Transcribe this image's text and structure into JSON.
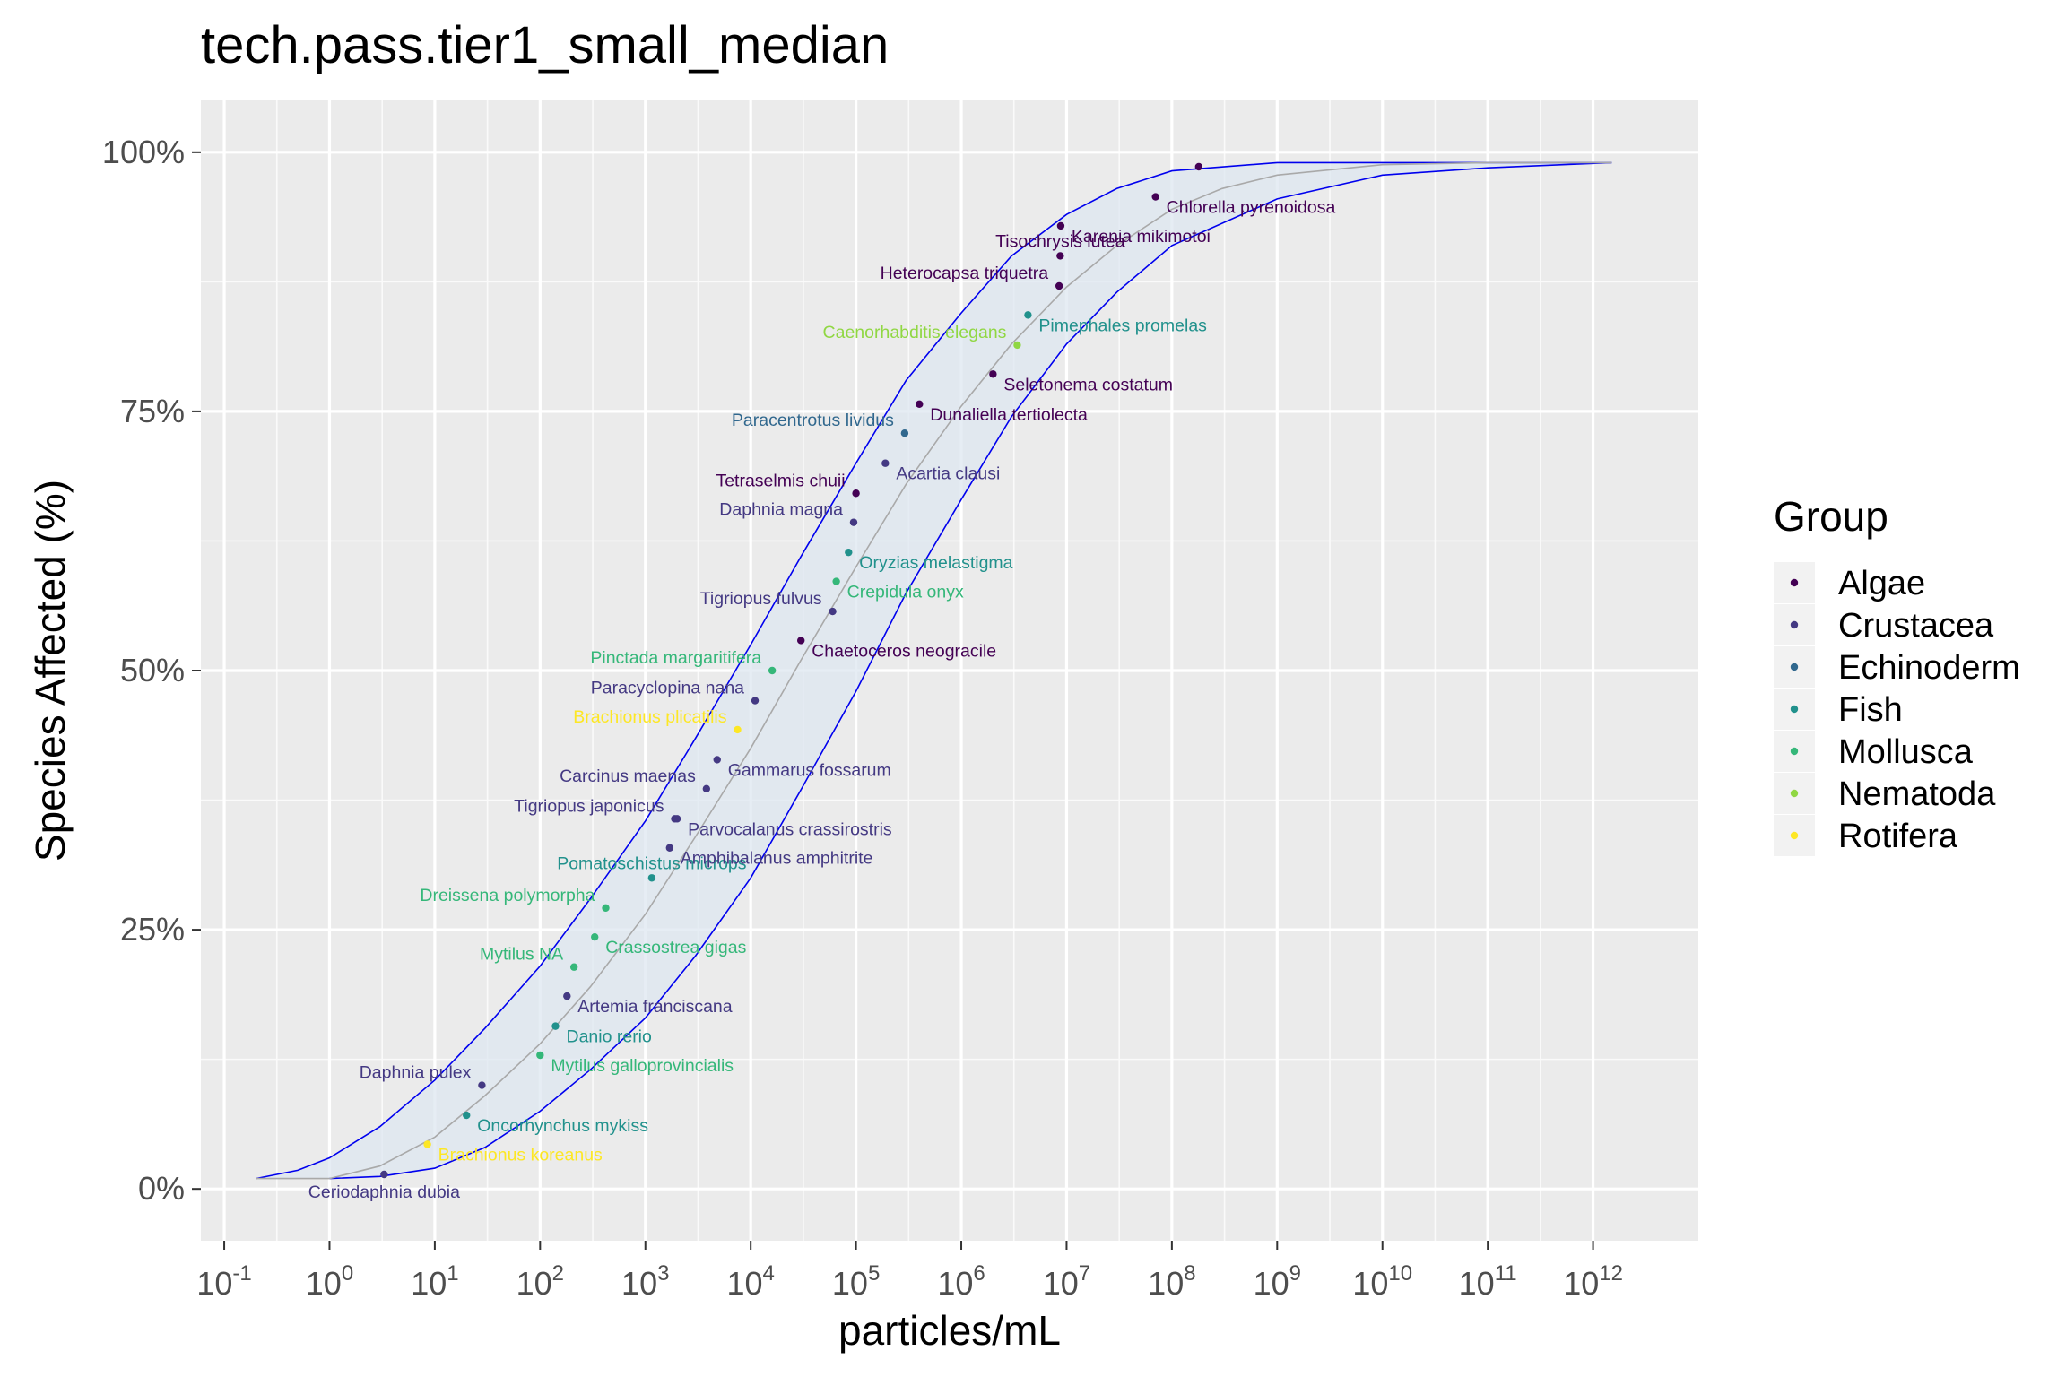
{
  "chart_data": {
    "type": "scatter",
    "title": "tech.pass.tier1_small_median",
    "xlabel": "particles/mL",
    "ylabel": "Species Affected (%)",
    "x_scale": "log10",
    "xlim": [
      0.06,
      10000000000000.0
    ],
    "ylim": [
      -5,
      105
    ],
    "x_ticks": [
      {
        "value": 0.1,
        "base": "10",
        "exp": "-1"
      },
      {
        "value": 1,
        "base": "10",
        "exp": "0"
      },
      {
        "value": 10,
        "base": "10",
        "exp": "1"
      },
      {
        "value": 100,
        "base": "10",
        "exp": "2"
      },
      {
        "value": 1000,
        "base": "10",
        "exp": "3"
      },
      {
        "value": 10000,
        "base": "10",
        "exp": "4"
      },
      {
        "value": 100000,
        "base": "10",
        "exp": "5"
      },
      {
        "value": 1000000,
        "base": "10",
        "exp": "6"
      },
      {
        "value": 10000000,
        "base": "10",
        "exp": "7"
      },
      {
        "value": 100000000,
        "base": "10",
        "exp": "8"
      },
      {
        "value": 1000000000,
        "base": "10",
        "exp": "9"
      },
      {
        "value": 10000000000,
        "base": "10",
        "exp": "10"
      },
      {
        "value": 100000000000,
        "base": "10",
        "exp": "11"
      },
      {
        "value": 1000000000000,
        "base": "10",
        "exp": "12"
      }
    ],
    "y_ticks": [
      {
        "value": 0,
        "label": "0%"
      },
      {
        "value": 25,
        "label": "25%"
      },
      {
        "value": 50,
        "label": "50%"
      },
      {
        "value": 75,
        "label": "75%"
      },
      {
        "value": 100,
        "label": "100%"
      }
    ],
    "grid": true,
    "legend": {
      "title": "Group",
      "position": "right"
    },
    "groups": [
      {
        "name": "Algae",
        "color": "#440154"
      },
      {
        "name": "Crustacea",
        "color": "#443983"
      },
      {
        "name": "Echinoderm",
        "color": "#31688E"
      },
      {
        "name": "Fish",
        "color": "#21918C"
      },
      {
        "name": "Mollusca",
        "color": "#35B779"
      },
      {
        "name": "Nematoda",
        "color": "#90D743"
      },
      {
        "name": "Rotifera",
        "color": "#FDE725"
      }
    ],
    "fit_line_color": "#a9a9a9",
    "band_color": "#0000ee",
    "band_fill": "#dde7f0",
    "fit_curve": [
      [
        0.2,
        1
      ],
      [
        1,
        1
      ],
      [
        3,
        2.2
      ],
      [
        10,
        5
      ],
      [
        30,
        9
      ],
      [
        100,
        14
      ],
      [
        300,
        19.5
      ],
      [
        1000,
        26.5
      ],
      [
        3000,
        34
      ],
      [
        10000,
        42.5
      ],
      [
        30000,
        51
      ],
      [
        100000,
        60
      ],
      [
        300000,
        68
      ],
      [
        1000000,
        75.5
      ],
      [
        3000000,
        81.5
      ],
      [
        10000000,
        87
      ],
      [
        30000000,
        91
      ],
      [
        100000000,
        94.5
      ],
      [
        300000000,
        96.5
      ],
      [
        1000000000,
        97.8
      ],
      [
        10000000000,
        98.8
      ],
      [
        100000000000,
        99
      ],
      [
        1500000000000,
        99
      ]
    ],
    "upper_band": [
      [
        0.2,
        1
      ],
      [
        0.5,
        1.8
      ],
      [
        1,
        3
      ],
      [
        3,
        6
      ],
      [
        10,
        10.5
      ],
      [
        30,
        15.5
      ],
      [
        100,
        21.5
      ],
      [
        300,
        28
      ],
      [
        1000,
        35.5
      ],
      [
        3000,
        43.5
      ],
      [
        10000,
        52.5
      ],
      [
        30000,
        61
      ],
      [
        100000,
        70
      ],
      [
        300000,
        78
      ],
      [
        1000000,
        84.5
      ],
      [
        3000000,
        90
      ],
      [
        10000000,
        94
      ],
      [
        30000000,
        96.5
      ],
      [
        100000000,
        98.2
      ],
      [
        1000000000,
        99
      ],
      [
        100000000000,
        99
      ],
      [
        1500000000000,
        99
      ]
    ],
    "lower_band": [
      [
        1,
        1
      ],
      [
        3,
        1.2
      ],
      [
        10,
        2
      ],
      [
        30,
        4
      ],
      [
        100,
        7.5
      ],
      [
        300,
        11.5
      ],
      [
        1000,
        16.5
      ],
      [
        3000,
        22.5
      ],
      [
        10000,
        30
      ],
      [
        30000,
        38.5
      ],
      [
        100000,
        48
      ],
      [
        300000,
        57.5
      ],
      [
        1000000,
        66.5
      ],
      [
        3000000,
        74.5
      ],
      [
        10000000,
        81.5
      ],
      [
        30000000,
        86.5
      ],
      [
        100000000,
        91
      ],
      [
        1000000000,
        95.5
      ],
      [
        10000000000,
        97.8
      ],
      [
        100000000000,
        98.5
      ],
      [
        1500000000000,
        99
      ]
    ],
    "points": [
      {
        "name": "Ceriodaphnia dubia",
        "group": "Crustacea",
        "x": 3.3,
        "y": 1.4,
        "label_side": "below"
      },
      {
        "name": "Brachionus koreanus",
        "group": "Rotifera",
        "x": 8.5,
        "y": 4.3,
        "label_side": "right"
      },
      {
        "name": "Oncorhynchus mykiss",
        "group": "Fish",
        "x": 20,
        "y": 7.1,
        "label_side": "right"
      },
      {
        "name": "Daphnia pulex",
        "group": "Crustacea",
        "x": 28,
        "y": 10,
        "label_side": "left"
      },
      {
        "name": "Mytilus galloprovincialis",
        "group": "Mollusca",
        "x": 100,
        "y": 12.9,
        "label_side": "right"
      },
      {
        "name": "Danio rerio",
        "group": "Fish",
        "x": 140,
        "y": 15.7,
        "label_side": "right"
      },
      {
        "name": "Artemia franciscana",
        "group": "Crustacea",
        "x": 180,
        "y": 18.6,
        "label_side": "right"
      },
      {
        "name": "Mytilus NA",
        "group": "Mollusca",
        "x": 210,
        "y": 21.4,
        "label_side": "left"
      },
      {
        "name": "Crassostrea gigas",
        "group": "Mollusca",
        "x": 330,
        "y": 24.3,
        "label_side": "right"
      },
      {
        "name": "Dreissena polymorpha",
        "group": "Mollusca",
        "x": 420,
        "y": 27.1,
        "label_side": "left"
      },
      {
        "name": "Pomatoschistus microps",
        "group": "Fish",
        "x": 1150,
        "y": 30,
        "label_side": "above"
      },
      {
        "name": "Amphibalanus amphitrite",
        "group": "Crustacea",
        "x": 1700,
        "y": 32.9,
        "label_side": "right"
      },
      {
        "name": "Tigriopus japonicus",
        "group": "Crustacea",
        "x": 1900,
        "y": 35.7,
        "label_side": "left"
      },
      {
        "name": "Parvocalanus crassirostris",
        "group": "Crustacea",
        "x": 2000,
        "y": 35.7,
        "label_side": "right"
      },
      {
        "name": "Carcinus maenas",
        "group": "Crustacea",
        "x": 3800,
        "y": 38.6,
        "label_side": "left"
      },
      {
        "name": "Gammarus fossarum",
        "group": "Crustacea",
        "x": 4800,
        "y": 41.4,
        "label_side": "right"
      },
      {
        "name": "Brachionus plicatilis",
        "group": "Rotifera",
        "x": 7500,
        "y": 44.3,
        "label_side": "left"
      },
      {
        "name": "Paracyclopina nana",
        "group": "Crustacea",
        "x": 11000,
        "y": 47.1,
        "label_side": "left"
      },
      {
        "name": "Pinctada margaritifera",
        "group": "Mollusca",
        "x": 16000,
        "y": 50,
        "label_side": "left"
      },
      {
        "name": "Chaetoceros neogracile",
        "group": "Algae",
        "x": 30000,
        "y": 52.9,
        "label_side": "right"
      },
      {
        "name": "Tigriopus fulvus",
        "group": "Crustacea",
        "x": 60000,
        "y": 55.7,
        "label_side": "left"
      },
      {
        "name": "Crepidula onyx",
        "group": "Mollusca",
        "x": 65000,
        "y": 58.6,
        "label_side": "right"
      },
      {
        "name": "Oryzias melastigma",
        "group": "Fish",
        "x": 85000,
        "y": 61.4,
        "label_side": "right"
      },
      {
        "name": "Daphnia magna",
        "group": "Crustacea",
        "x": 95000,
        "y": 64.3,
        "label_side": "left"
      },
      {
        "name": "Tetraselmis chuii",
        "group": "Algae",
        "x": 100000,
        "y": 67.1,
        "label_side": "left"
      },
      {
        "name": "Acartia clausi",
        "group": "Crustacea",
        "x": 190000,
        "y": 70,
        "label_side": "right"
      },
      {
        "name": "Paracentrotus lividus",
        "group": "Echinoderm",
        "x": 290000,
        "y": 72.9,
        "label_side": "left"
      },
      {
        "name": "Dunaliella tertiolecta",
        "group": "Algae",
        "x": 400000,
        "y": 75.7,
        "label_side": "right"
      },
      {
        "name": "Seletonema costatum",
        "group": "Algae",
        "x": 2000000,
        "y": 78.6,
        "label_side": "right"
      },
      {
        "name": "Caenorhabditis elegans",
        "group": "Nematoda",
        "x": 3400000,
        "y": 81.4,
        "label_side": "left"
      },
      {
        "name": "Pimephales promelas",
        "group": "Fish",
        "x": 4300000,
        "y": 84.3,
        "label_side": "right"
      },
      {
        "name": "Heterocapsa triquetra",
        "group": "Algae",
        "x": 8500000,
        "y": 87.1,
        "label_side": "left"
      },
      {
        "name": "Tisochrysis lutea",
        "group": "Algae",
        "x": 8700000,
        "y": 90,
        "label_side": "above"
      },
      {
        "name": "Karenia mikimotoi",
        "group": "Algae",
        "x": 8800000,
        "y": 92.9,
        "label_side": "right"
      },
      {
        "name": "Chlorella pyrenoidosa",
        "group": "Algae",
        "x": 70000000,
        "y": 95.7,
        "label_side": "right"
      },
      {
        "name": "",
        "group": "Algae",
        "x": 180000000,
        "y": 98.6,
        "label_side": "none"
      }
    ]
  }
}
